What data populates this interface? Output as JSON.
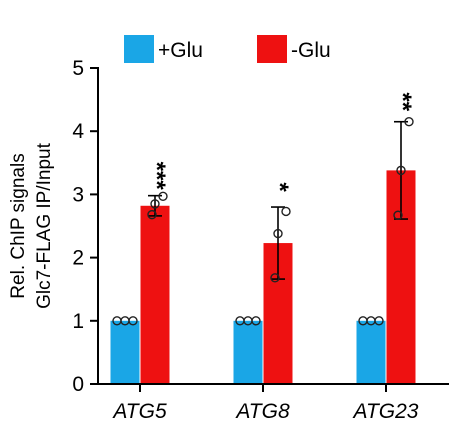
{
  "chart_data": {
    "type": "bar",
    "categories": [
      "ATG5",
      "ATG8",
      "ATG23"
    ],
    "series": [
      {
        "name": "+Glu",
        "color": "#1aa6e6",
        "values": [
          1.0,
          1.0,
          1.0
        ],
        "errors": [
          0.0,
          0.0,
          0.0
        ],
        "points": [
          [
            1.0,
            1.0,
            1.0
          ],
          [
            1.0,
            1.0,
            1.0
          ],
          [
            1.0,
            1.0,
            1.0
          ]
        ]
      },
      {
        "name": "-Glu",
        "color": "#ee1111",
        "values": [
          2.82,
          2.23,
          3.38
        ],
        "errors": [
          0.16,
          0.57,
          0.77
        ],
        "points": [
          [
            2.68,
            2.85,
            2.97
          ],
          [
            1.68,
            2.38,
            2.73
          ],
          [
            2.67,
            3.38,
            4.15
          ]
        ]
      }
    ],
    "significance": [
      "***",
      "*",
      "**"
    ],
    "ylabel": [
      "Rel. ChIP signals",
      "Glc7-FLAG IP/Input"
    ],
    "xlabel": "",
    "ylim": [
      0,
      5
    ],
    "yticks": [
      0,
      1,
      2,
      3,
      4,
      5
    ],
    "grid": false,
    "legend_position": "top"
  }
}
